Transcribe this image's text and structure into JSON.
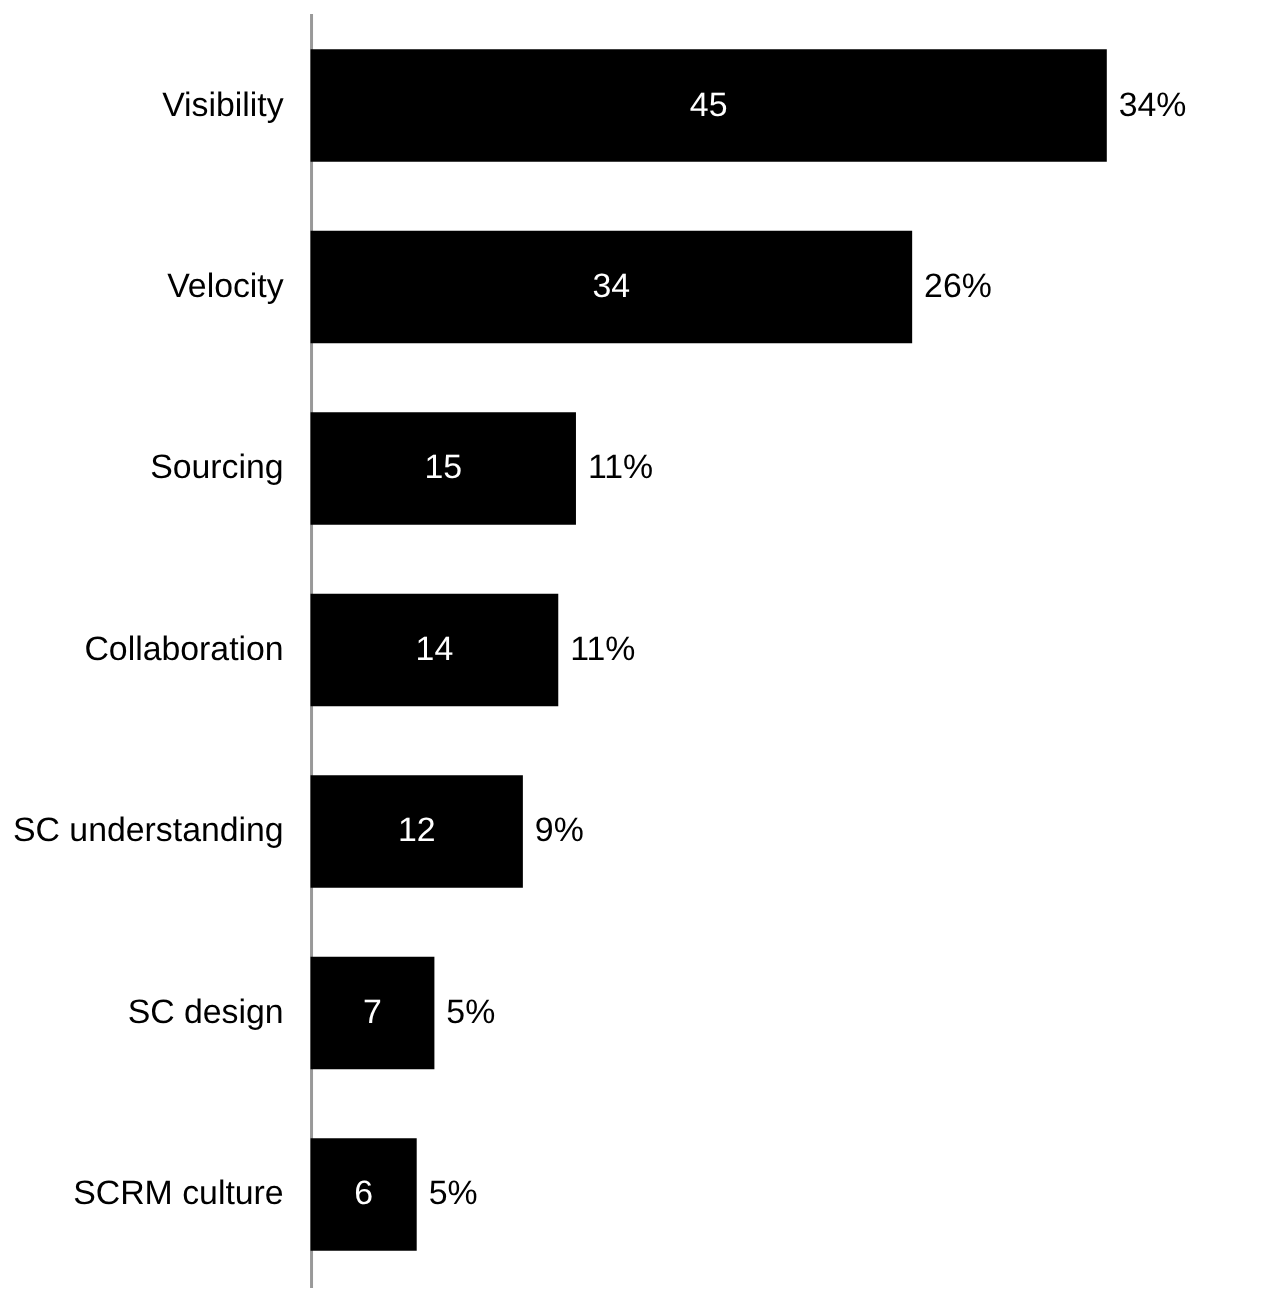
{
  "chart_data": {
    "type": "bar",
    "orientation": "horizontal",
    "categories": [
      "Visibility",
      "Velocity",
      "Sourcing",
      "Collaboration",
      "SC understanding",
      "SC design",
      "SCRM culture"
    ],
    "values": [
      45,
      34,
      15,
      14,
      12,
      7,
      6
    ],
    "color": "#000000",
    "data_labels": true,
    "annotations": [
      {
        "text": "34%",
        "x": 45,
        "y": "Visibility"
      },
      {
        "text": "26%",
        "x": 34,
        "y": "Velocity"
      },
      {
        "text": "11%",
        "x": 15,
        "y": "Sourcing"
      },
      {
        "text": "11%",
        "x": 14,
        "y": "Collaboration"
      },
      {
        "text": "9%",
        "x": 12,
        "y": "SC understanding"
      },
      {
        "text": "5%",
        "x": 7,
        "y": "SC design"
      },
      {
        "text": "5%",
        "x": 6,
        "y": "SCRM culture"
      }
    ],
    "grid": false
  }
}
